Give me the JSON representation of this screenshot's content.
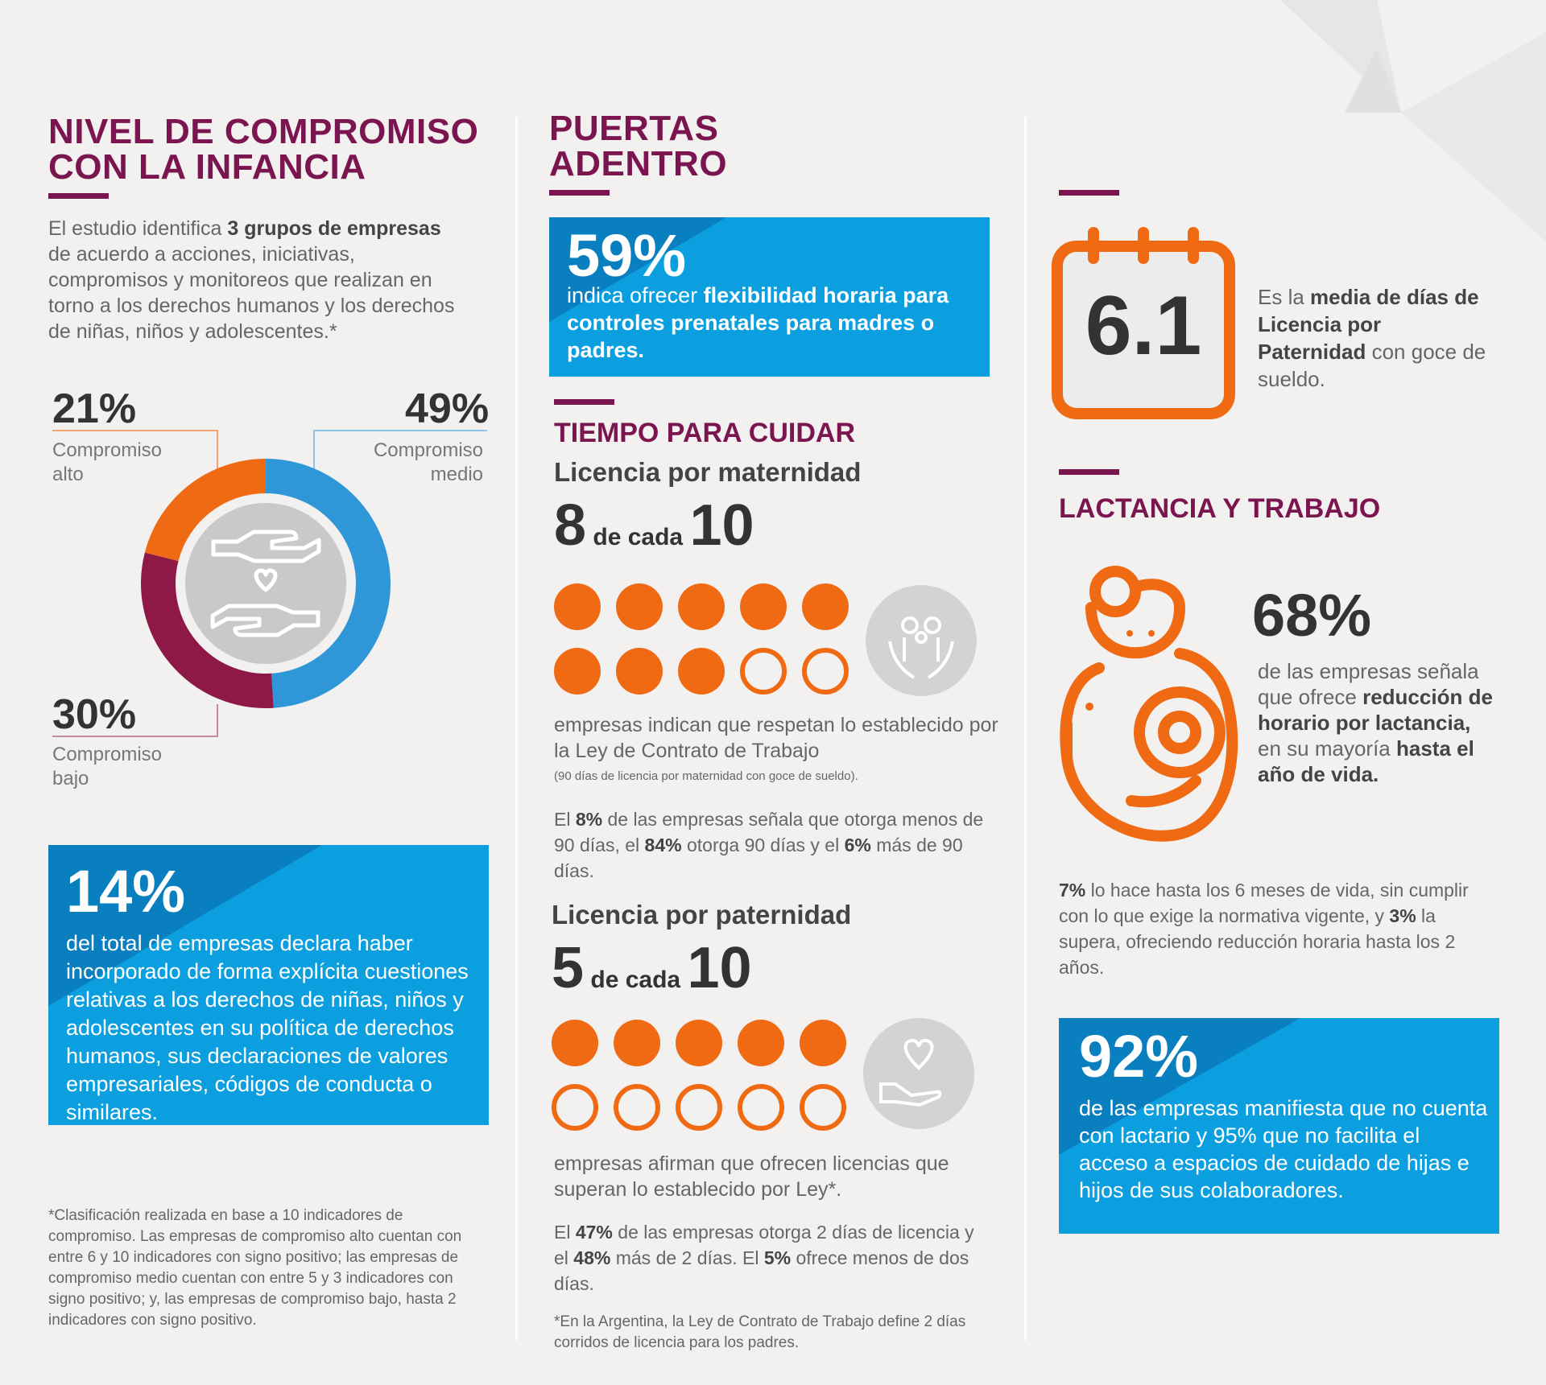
{
  "col1": {
    "title_line1": "NIVEL DE COMPROMISO",
    "title_line2": "CON LA INFANCIA",
    "intro_pre": "El estudio identifica ",
    "intro_bold": "3 grupos de empresas",
    "intro_post": " de acuerdo a acciones, iniciativas, compromisos y monitoreos que realizan en torno a los derechos humanos y los derechos de niñas, niños y adolescentes.*",
    "donut": {
      "segments": [
        {
          "pct": "21%",
          "label_line1": "Compromiso",
          "label_line2": "alto",
          "value": 21,
          "color": "#f06a14"
        },
        {
          "pct": "49%",
          "label_line1": "Compromiso",
          "label_line2": "medio",
          "value": 49,
          "color": "#2f97d8"
        },
        {
          "pct": "30%",
          "label_line1": "Compromiso",
          "label_line2": "bajo",
          "value": 30,
          "color": "#8e1946"
        }
      ],
      "center_icon": "hands-heart-icon"
    },
    "box": {
      "pct": "14%",
      "text": "del total de empresas declara haber incorporado de forma explícita cuestiones relativas a los derechos de niñas, niños y adolescentes en su política de derechos humanos, sus declaraciones de valores empresariales, códigos de conducta o similares."
    },
    "footnote": "*Clasificación realizada en base a 10 indicadores de compromiso. Las empresas de compromiso alto cuentan con entre 6 y 10 indicadores con signo positivo; las empresas de compromiso medio cuentan con entre 5 y 3 indicadores con signo positivo; y, las empresas de compromiso bajo, hasta 2 indicadores con signo positivo."
  },
  "col2": {
    "title_line1": "PUERTAS",
    "title_line2": "ADENTRO",
    "box": {
      "pct": "59%",
      "text_pre": "indica ofrecer ",
      "text_bold": "flexibilidad horaria para controles prenatales para madres o padres."
    },
    "section_title": "TIEMPO PARA CUIDAR",
    "maternity": {
      "heading": "Licencia por maternidad",
      "count_num": "8",
      "count_mid": " de cada ",
      "count_den": "10",
      "filled": 8,
      "total": 10,
      "icon": "family-hands-icon",
      "text": "empresas indican que respetan lo establecido por la Ley de Contrato de Trabajo",
      "small": "(90 días de licencia por maternidad con goce de sueldo).",
      "detail_1": "El ",
      "detail_b1": "8%",
      "detail_2": " de las empresas señala que otorga menos de 90 días, el ",
      "detail_b2": "84%",
      "detail_3": " otorga 90 días y el ",
      "detail_b3": "6%",
      "detail_4": " más de 90 días."
    },
    "paternity": {
      "heading": "Licencia por paternidad",
      "count_num": "5",
      "count_mid": " de cada ",
      "count_den": "10",
      "filled": 5,
      "total": 10,
      "icon": "hand-heart-icon",
      "text": "empresas afirman que ofrecen licencias que superan lo establecido por Ley*.",
      "detail_1": "El ",
      "detail_b1": "47%",
      "detail_2": " de las empresas otorga 2 días de licencia y el ",
      "detail_b2": "48%",
      "detail_3": " más de 2 días. El ",
      "detail_b3": "5%",
      "detail_4": " ofrece menos de dos días.",
      "footnote": "*En la Argentina, la Ley de Contrato de Trabajo define 2 días corridos de licencia para los padres."
    }
  },
  "col3": {
    "calendar_value": "6.1",
    "calendar_text_1": "Es la ",
    "calendar_text_b": "media de días de Licencia por Paternidad",
    "calendar_text_2": " con goce de sueldo.",
    "section_title": "LACTANCIA Y TRABAJO",
    "lact_pct": "68%",
    "lact_text_1": "de las empresas señala que ofrece ",
    "lact_text_b1": "reducción de horario por lactancia,",
    "lact_text_2": " en su mayoría ",
    "lact_text_b2": "hasta el año de vida.",
    "detail_b1": "7%",
    "detail_1": " lo hace hasta los 6 meses de vida, sin cumplir con lo que exige la normativa vigente, y ",
    "detail_b2": "3%",
    "detail_2": " la supera, ofreciendo reducción horaria hasta los 2 años.",
    "box": {
      "pct": "92%",
      "text": "de las empresas manifiesta que no cuenta con lactario y 95% que no facilita el acceso a espacios de cuidado de hijas e hijos de sus colaboradores."
    }
  },
  "colors": {
    "purple": "#7b1550",
    "orange": "#f06a14",
    "blue": "#0b9fe0",
    "donut_blue": "#2f97d8",
    "donut_wine": "#8e1946"
  }
}
